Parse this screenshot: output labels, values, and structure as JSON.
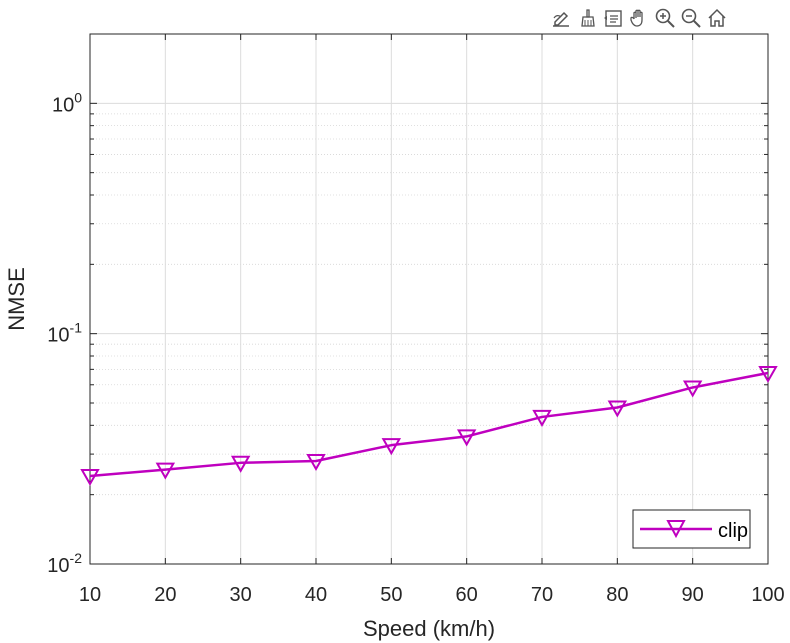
{
  "toolbar": {
    "buttons": [
      {
        "name": "edit-plot-icon"
      },
      {
        "name": "brush-icon"
      },
      {
        "name": "data-tips-icon"
      },
      {
        "name": "pan-hand-icon"
      },
      {
        "name": "zoom-in-icon"
      },
      {
        "name": "zoom-out-icon"
      },
      {
        "name": "home-icon"
      }
    ]
  },
  "chart_data": {
    "type": "line",
    "title": "",
    "xlabel": "Speed (km/h)",
    "ylabel": "NMSE",
    "xlim": [
      10,
      100
    ],
    "ylim": [
      0.01,
      2
    ],
    "yscale": "log",
    "grid": true,
    "minor_grid": true,
    "x_ticks": [
      "10",
      "20",
      "30",
      "40",
      "50",
      "60",
      "70",
      "80",
      "90",
      "100"
    ],
    "y_ticks": [
      {
        "base": "10",
        "exp": "-2"
      },
      {
        "base": "10",
        "exp": "-1"
      },
      {
        "base": "10",
        "exp": "0"
      }
    ],
    "legend_position": "bottom-right",
    "series": [
      {
        "name": "clip",
        "color": "#BF00BF",
        "marker": "triangle-down",
        "x": [
          10,
          20,
          30,
          40,
          50,
          60,
          70,
          80,
          90,
          100
        ],
        "y": [
          0.0241,
          0.0257,
          0.0275,
          0.028,
          0.0328,
          0.0358,
          0.0435,
          0.0478,
          0.0584,
          0.0675
        ]
      }
    ]
  }
}
